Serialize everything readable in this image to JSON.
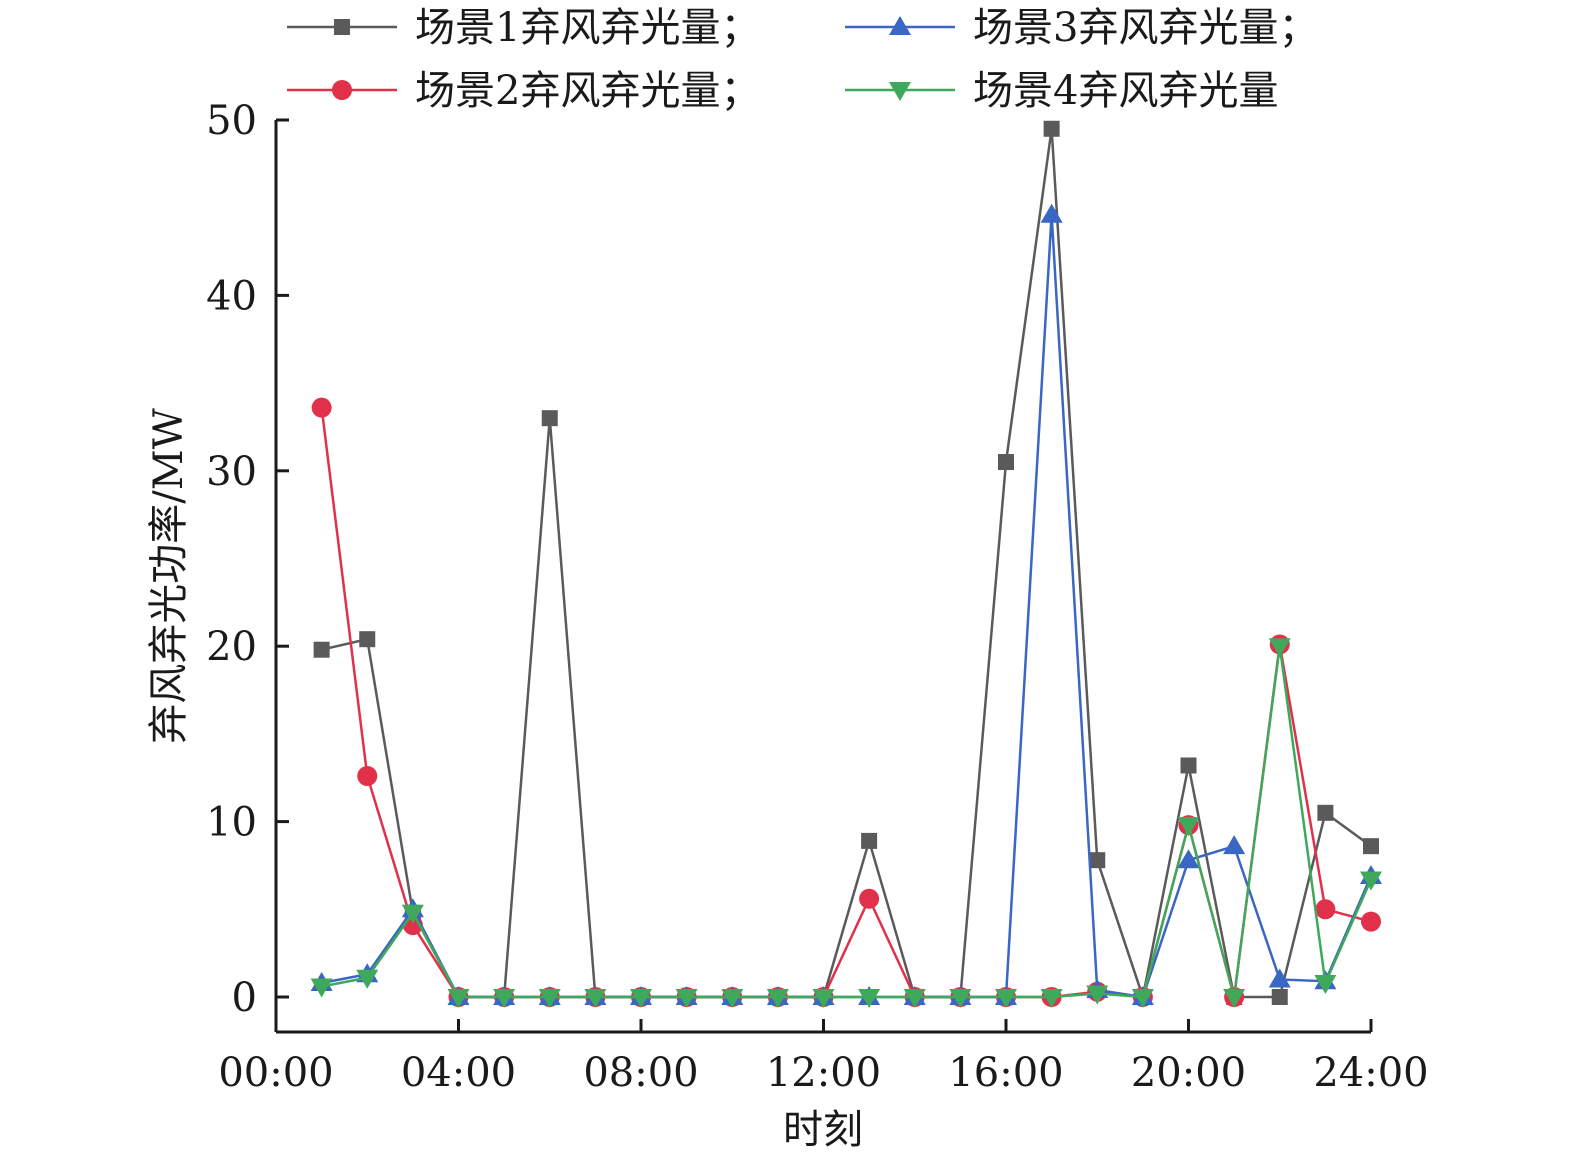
{
  "chart_data": {
    "type": "line",
    "xlabel": "时刻",
    "ylabel": "弃风弃光功率/MW",
    "ylim": [
      0,
      50
    ],
    "xlim": [
      0,
      24
    ],
    "x_ticks": [
      0,
      4,
      8,
      12,
      16,
      20,
      24
    ],
    "x_tick_labels": [
      "00:00",
      "04:00",
      "08:00",
      "12:00",
      "16:00",
      "20:00",
      "24:00"
    ],
    "y_ticks": [
      0,
      10,
      20,
      30,
      40,
      50
    ],
    "y_tick_labels": [
      "0",
      "10",
      "20",
      "30",
      "40",
      "50"
    ],
    "grid": false,
    "legend_position": "top",
    "x": [
      1,
      2,
      3,
      4,
      5,
      6,
      7,
      8,
      9,
      10,
      11,
      12,
      13,
      14,
      15,
      16,
      17,
      18,
      19,
      20,
      21,
      22,
      23,
      24
    ],
    "series": [
      {
        "name": "场景1弃风弃光量；",
        "color": "#5a5a5a",
        "marker": "square",
        "values": [
          19.8,
          20.4,
          4.8,
          0,
          0,
          33,
          0,
          0,
          0,
          0,
          0,
          0,
          8.9,
          0,
          0,
          30.5,
          49.5,
          7.8,
          0,
          13.2,
          0,
          0,
          10.5,
          8.6
        ]
      },
      {
        "name": "场景2弃风弃光量；",
        "color": "#e0304a",
        "marker": "circle",
        "values": [
          33.6,
          12.6,
          4.1,
          0,
          0,
          0,
          0,
          0,
          0,
          0,
          0,
          0,
          5.6,
          0,
          0,
          0,
          0,
          0.3,
          0,
          9.8,
          0,
          20.1,
          5.0,
          4.3
        ]
      },
      {
        "name": "场景3弃风弃光量；",
        "color": "#3a66c4",
        "marker": "triangle-up",
        "values": [
          0.8,
          1.3,
          5.0,
          0,
          0,
          0,
          0,
          0,
          0,
          0,
          0,
          0,
          0,
          0,
          0,
          0,
          44.6,
          0.4,
          0,
          7.8,
          8.6,
          1.0,
          0.9,
          6.9
        ]
      },
      {
        "name": "场景4弃风弃光量",
        "color": "#3fa85a",
        "marker": "triangle-down",
        "values": [
          0.6,
          1.1,
          4.8,
          0,
          0,
          0,
          0,
          0,
          0,
          0,
          0,
          0,
          0,
          0,
          0,
          0,
          0,
          0.2,
          0,
          9.8,
          0,
          20.0,
          0.8,
          6.7
        ]
      }
    ]
  }
}
